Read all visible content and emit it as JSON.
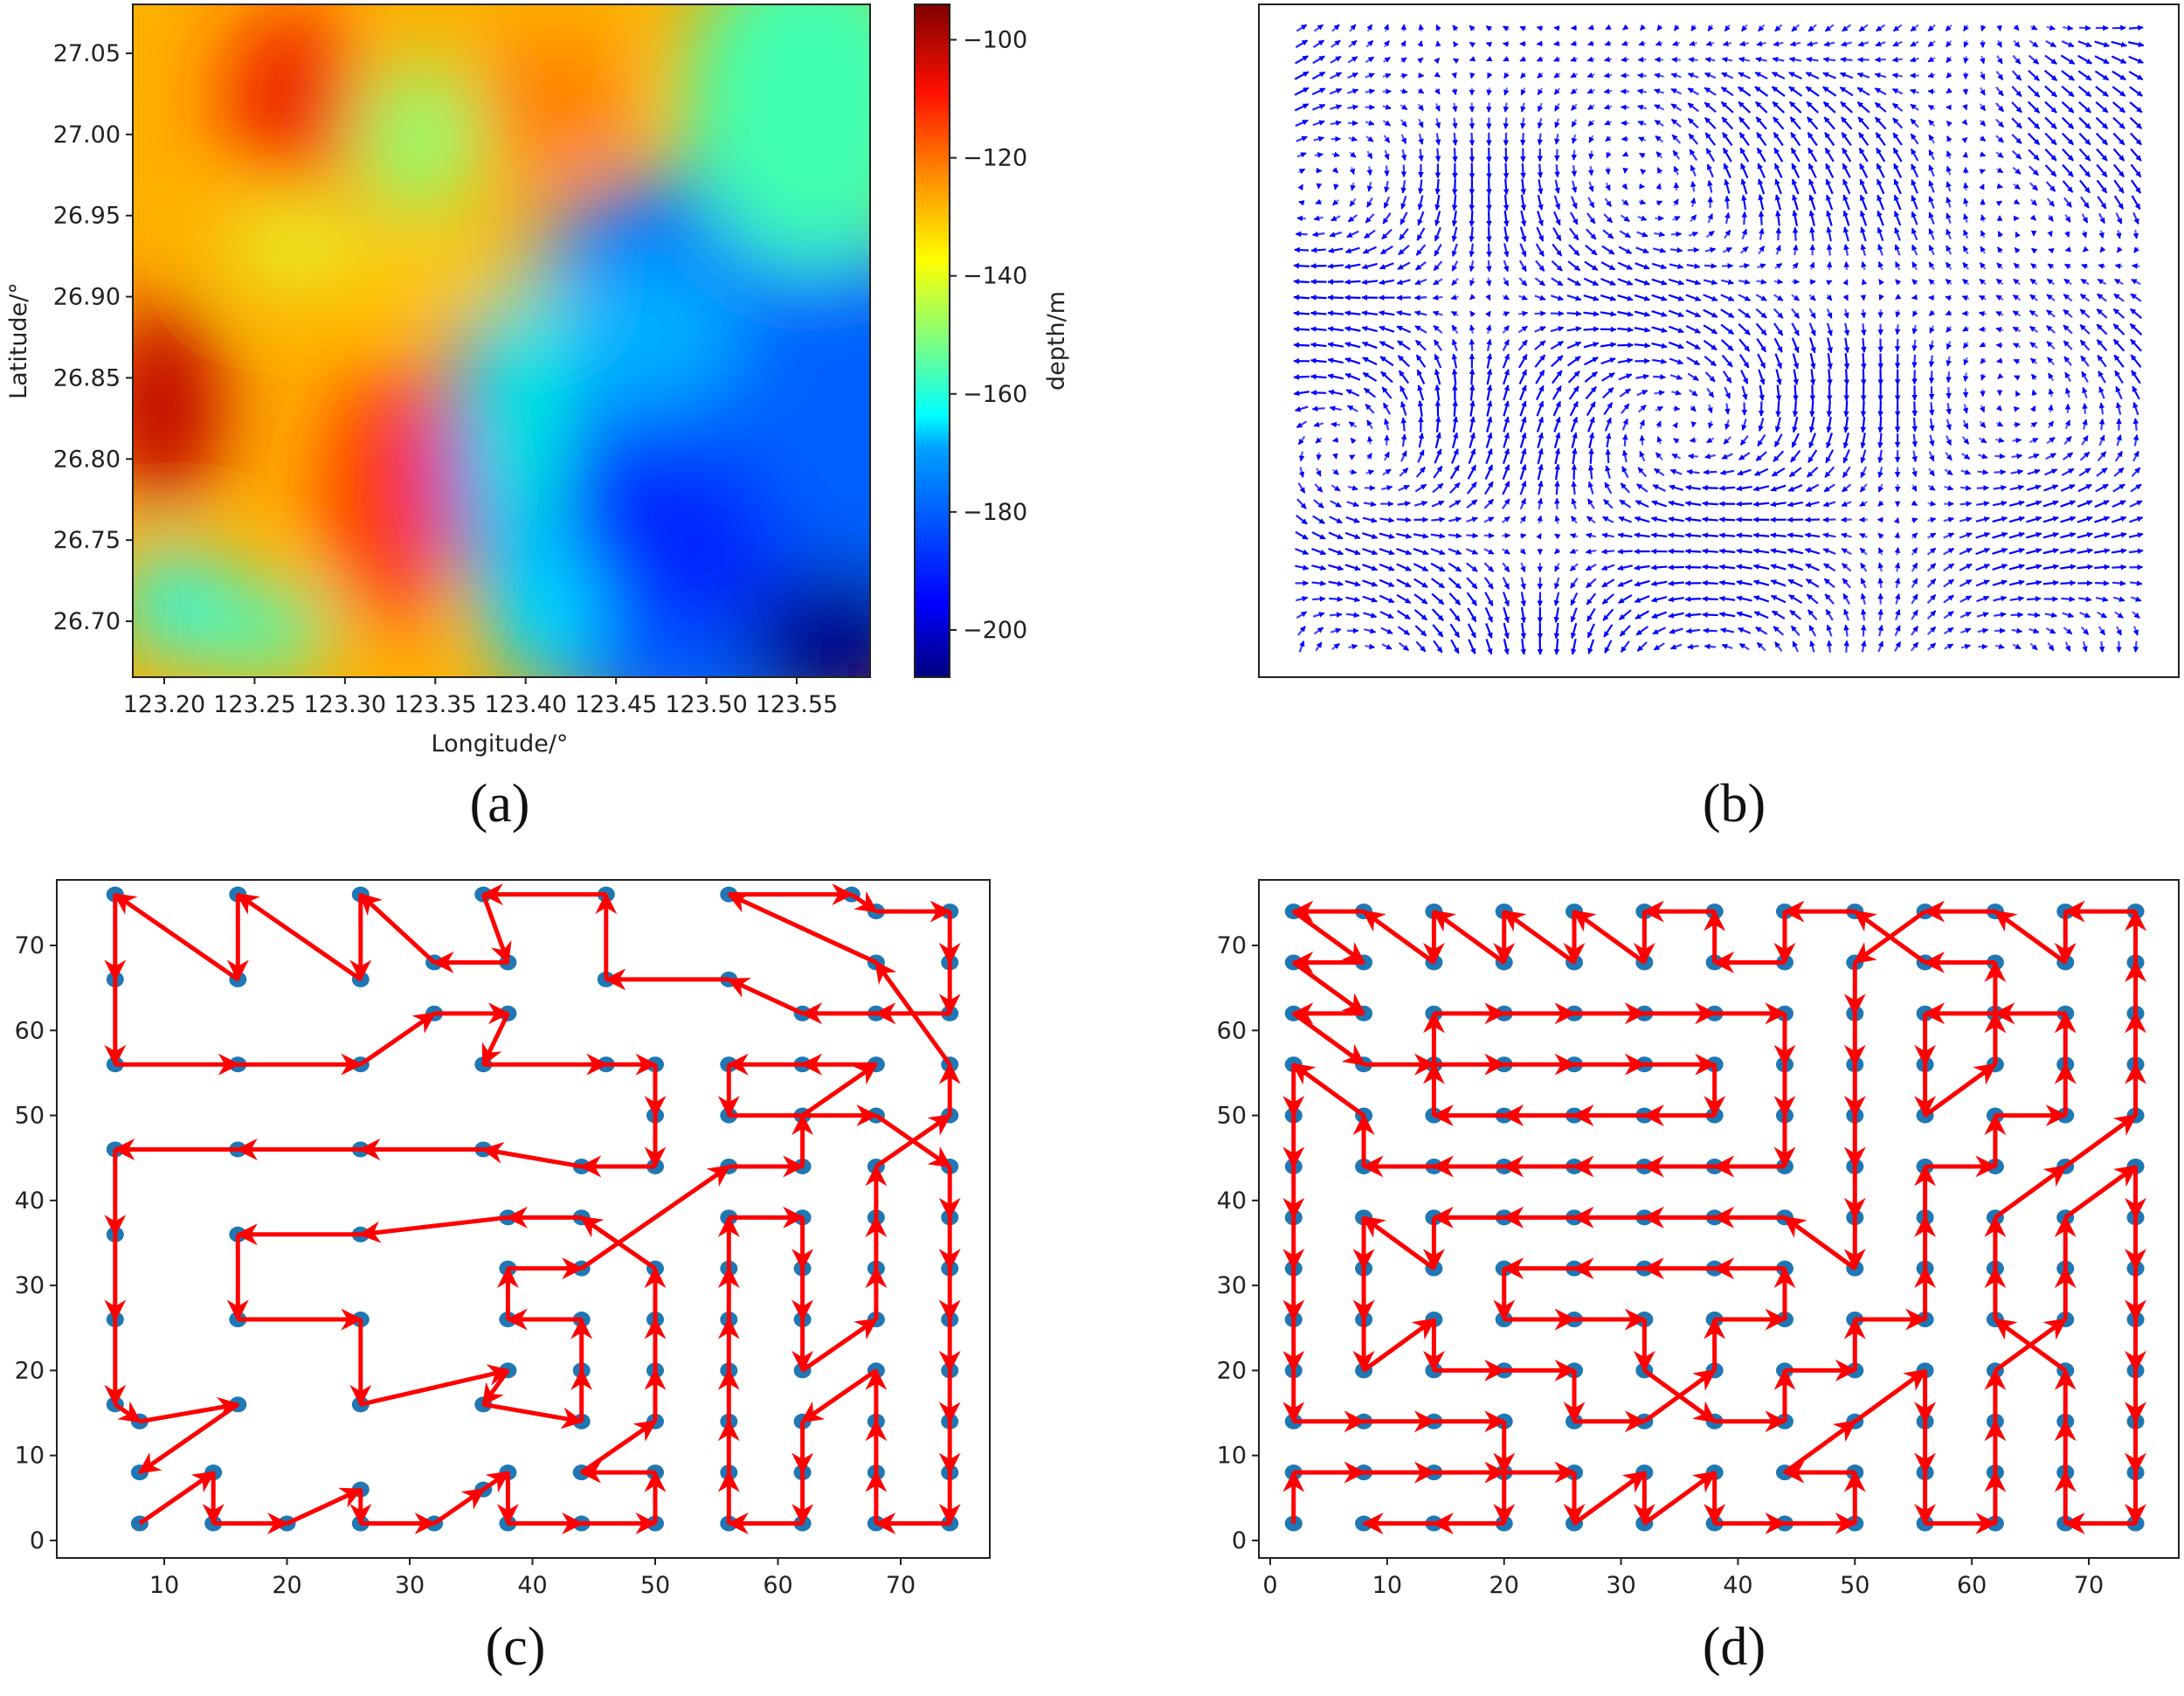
{
  "figure": {
    "panels": [
      {
        "id": "a",
        "caption": "(a)"
      },
      {
        "id": "b",
        "caption": "(b)"
      },
      {
        "id": "c",
        "caption": "(c)"
      },
      {
        "id": "d",
        "caption": "(d)"
      }
    ]
  },
  "chart_data": [
    {
      "panel": "(a)",
      "type": "heatmap",
      "title": "",
      "xlabel": "Longitude/°",
      "ylabel": "Latitude/°",
      "colorbar_label": "depth/m",
      "colormap": "jet",
      "xlim": [
        123.165,
        123.59
      ],
      "ylim": [
        26.665,
        27.08
      ],
      "x_ticks": [
        "123.20",
        "123.25",
        "123.30",
        "123.35",
        "123.40",
        "123.45",
        "123.50",
        "123.55"
      ],
      "y_ticks": [
        "26.70",
        "26.75",
        "26.80",
        "26.85",
        "26.90",
        "26.95",
        "27.00",
        "27.05"
      ],
      "colorbar_ticks": [
        "−100",
        "−120",
        "−140",
        "−160",
        "−180",
        "−200"
      ],
      "colorbar_range": [
        -208,
        -94
      ],
      "features": [
        {
          "desc": "shallow peak (dark red)",
          "lon": 123.26,
          "lat": 27.02,
          "depth": -98
        },
        {
          "desc": "shallow ridge (dark red)",
          "lon": 123.18,
          "lat": 26.82,
          "depth": -102
        },
        {
          "desc": "shallow ridge (red)",
          "lon": 123.31,
          "lat": 26.76,
          "depth": -110
        },
        {
          "desc": "light green pocket",
          "lon": 123.33,
          "lat": 27.0,
          "depth": -148
        },
        {
          "desc": "cyan pocket",
          "lon": 123.2,
          "lat": 26.71,
          "depth": -168
        },
        {
          "desc": "deep basin (blue)",
          "lon": 123.47,
          "lat": 26.74,
          "depth": -195
        },
        {
          "desc": "deepest (dark blue) corner",
          "lon": 123.57,
          "lat": 26.68,
          "depth": -207
        },
        {
          "desc": "green-cyan NE corner",
          "lon": 123.56,
          "lat": 27.05,
          "depth": -155
        }
      ]
    },
    {
      "panel": "(b)",
      "type": "quiver",
      "title": "",
      "xlabel": "",
      "ylabel": "",
      "arrow_color": "#0000ff",
      "grid": "approx 50 x 40 vectors",
      "description": "Current velocity field with eddies; no axis ticks shown"
    },
    {
      "panel": "(c)",
      "type": "scatter+path",
      "title": "",
      "xlabel": "",
      "ylabel": "",
      "xlim": [
        3,
        77
      ],
      "ylim": [
        -2,
        79
      ],
      "x_ticks": [
        10,
        20,
        30,
        40,
        50,
        60,
        70
      ],
      "y_ticks": [
        0,
        10,
        20,
        30,
        40,
        50,
        60,
        70
      ],
      "point_color": "#1f77b4",
      "path_color": "#ff0000",
      "path": [
        [
          8,
          2
        ],
        [
          14,
          8
        ],
        [
          14,
          2
        ],
        [
          20,
          2
        ],
        [
          26,
          6
        ],
        [
          26,
          2
        ],
        [
          32,
          2
        ],
        [
          36,
          6
        ],
        [
          38,
          8
        ],
        [
          38,
          2
        ],
        [
          44,
          2
        ],
        [
          50,
          2
        ],
        [
          50,
          8
        ],
        [
          44,
          8
        ],
        [
          50,
          14
        ],
        [
          50,
          20
        ],
        [
          50,
          26
        ],
        [
          50,
          32
        ],
        [
          44,
          38
        ],
        [
          38,
          38
        ],
        [
          26,
          36
        ],
        [
          16,
          36
        ],
        [
          16,
          26
        ],
        [
          26,
          26
        ],
        [
          26,
          16
        ],
        [
          38,
          20
        ],
        [
          36,
          16
        ],
        [
          44,
          14
        ],
        [
          44,
          20
        ],
        [
          44,
          26
        ],
        [
          38,
          26
        ],
        [
          38,
          32
        ],
        [
          44,
          32
        ],
        [
          56,
          44
        ],
        [
          62,
          44
        ],
        [
          62,
          50
        ],
        [
          68,
          56
        ],
        [
          62,
          56
        ],
        [
          56,
          56
        ],
        [
          56,
          50
        ],
        [
          68,
          50
        ],
        [
          74,
          44
        ],
        [
          74,
          38
        ],
        [
          74,
          32
        ],
        [
          74,
          26
        ],
        [
          74,
          20
        ],
        [
          74,
          14
        ],
        [
          74,
          8
        ],
        [
          74,
          2
        ],
        [
          68,
          2
        ],
        [
          68,
          8
        ],
        [
          68,
          14
        ],
        [
          68,
          20
        ],
        [
          62,
          14
        ],
        [
          62,
          8
        ],
        [
          62,
          2
        ],
        [
          56,
          2
        ],
        [
          56,
          8
        ],
        [
          56,
          14
        ],
        [
          56,
          20
        ],
        [
          56,
          26
        ],
        [
          56,
          32
        ],
        [
          56,
          38
        ],
        [
          62,
          38
        ],
        [
          62,
          32
        ],
        [
          62,
          26
        ],
        [
          62,
          20
        ],
        [
          68,
          26
        ],
        [
          68,
          32
        ],
        [
          68,
          38
        ],
        [
          68,
          44
        ],
        [
          74,
          50
        ],
        [
          74,
          56
        ],
        [
          68,
          68
        ],
        [
          56,
          76
        ],
        [
          66,
          76
        ],
        [
          68,
          74
        ],
        [
          74,
          74
        ],
        [
          74,
          68
        ],
        [
          74,
          62
        ],
        [
          68,
          62
        ],
        [
          62,
          62
        ],
        [
          56,
          66
        ],
        [
          46,
          66
        ],
        [
          46,
          76
        ],
        [
          36,
          76
        ],
        [
          38,
          68
        ],
        [
          32,
          68
        ],
        [
          26,
          76
        ],
        [
          26,
          66
        ],
        [
          16,
          76
        ],
        [
          16,
          66
        ],
        [
          6,
          76
        ],
        [
          6,
          66
        ],
        [
          6,
          56
        ],
        [
          16,
          56
        ],
        [
          26,
          56
        ],
        [
          32,
          62
        ],
        [
          38,
          62
        ],
        [
          36,
          56
        ],
        [
          46,
          56
        ],
        [
          50,
          56
        ],
        [
          50,
          50
        ],
        [
          50,
          44
        ],
        [
          44,
          44
        ],
        [
          36,
          46
        ],
        [
          26,
          46
        ],
        [
          16,
          46
        ],
        [
          6,
          46
        ],
        [
          6,
          36
        ],
        [
          6,
          26
        ],
        [
          6,
          16
        ],
        [
          8,
          14
        ],
        [
          16,
          16
        ],
        [
          8,
          8
        ]
      ]
    },
    {
      "panel": "(d)",
      "type": "scatter+path",
      "title": "",
      "xlabel": "",
      "ylabel": "",
      "xlim": [
        -2,
        77
      ],
      "ylim": [
        -2,
        77
      ],
      "x_ticks": [
        0,
        10,
        20,
        30,
        40,
        50,
        60,
        70
      ],
      "y_ticks": [
        0,
        10,
        20,
        30,
        40,
        50,
        60,
        70
      ],
      "point_color": "#1f77b4",
      "path_color": "#ff0000",
      "grid_x": [
        2,
        8,
        14,
        20,
        26,
        32,
        38,
        44,
        50,
        56,
        62,
        68,
        74
      ],
      "grid_y": [
        2,
        8,
        14,
        20,
        26,
        32,
        38,
        44,
        50,
        56,
        62,
        68,
        74
      ],
      "path": [
        [
          2,
          2
        ],
        [
          2,
          8
        ],
        [
          8,
          8
        ],
        [
          14,
          8
        ],
        [
          20,
          8
        ],
        [
          26,
          8
        ],
        [
          26,
          2
        ],
        [
          32,
          8
        ],
        [
          32,
          2
        ],
        [
          38,
          8
        ],
        [
          38,
          2
        ],
        [
          44,
          2
        ],
        [
          50,
          2
        ],
        [
          50,
          8
        ],
        [
          44,
          8
        ],
        [
          50,
          14
        ],
        [
          56,
          20
        ],
        [
          56,
          14
        ],
        [
          56,
          8
        ],
        [
          56,
          2
        ],
        [
          62,
          2
        ],
        [
          62,
          8
        ],
        [
          62,
          14
        ],
        [
          62,
          20
        ],
        [
          68,
          26
        ],
        [
          68,
          32
        ],
        [
          68,
          38
        ],
        [
          74,
          44
        ],
        [
          74,
          38
        ],
        [
          74,
          32
        ],
        [
          74,
          26
        ],
        [
          74,
          20
        ],
        [
          74,
          14
        ],
        [
          74,
          8
        ],
        [
          74,
          2
        ],
        [
          68,
          2
        ],
        [
          68,
          8
        ],
        [
          68,
          14
        ],
        [
          68,
          20
        ],
        [
          62,
          26
        ],
        [
          62,
          32
        ],
        [
          62,
          38
        ],
        [
          68,
          44
        ],
        [
          74,
          50
        ],
        [
          74,
          56
        ],
        [
          74,
          62
        ],
        [
          74,
          68
        ],
        [
          74,
          74
        ],
        [
          68,
          74
        ],
        [
          68,
          68
        ],
        [
          62,
          74
        ],
        [
          56,
          74
        ],
        [
          50,
          68
        ],
        [
          50,
          62
        ],
        [
          50,
          56
        ],
        [
          50,
          50
        ],
        [
          50,
          44
        ],
        [
          50,
          38
        ],
        [
          50,
          32
        ],
        [
          44,
          38
        ],
        [
          38,
          38
        ],
        [
          32,
          38
        ],
        [
          26,
          38
        ],
        [
          20,
          38
        ],
        [
          14,
          38
        ],
        [
          14,
          32
        ],
        [
          8,
          38
        ],
        [
          8,
          32
        ],
        [
          8,
          26
        ],
        [
          8,
          20
        ],
        [
          14,
          26
        ],
        [
          14,
          20
        ],
        [
          20,
          20
        ],
        [
          26,
          20
        ],
        [
          26,
          14
        ],
        [
          32,
          14
        ],
        [
          38,
          20
        ],
        [
          38,
          26
        ],
        [
          44,
          26
        ],
        [
          44,
          32
        ],
        [
          38,
          32
        ],
        [
          32,
          32
        ],
        [
          26,
          32
        ],
        [
          20,
          32
        ],
        [
          20,
          26
        ],
        [
          26,
          26
        ],
        [
          32,
          26
        ],
        [
          32,
          20
        ],
        [
          38,
          14
        ],
        [
          44,
          14
        ],
        [
          44,
          20
        ],
        [
          50,
          20
        ],
        [
          50,
          26
        ],
        [
          56,
          26
        ],
        [
          56,
          32
        ],
        [
          56,
          38
        ],
        [
          56,
          44
        ],
        [
          62,
          44
        ],
        [
          62,
          50
        ],
        [
          68,
          50
        ],
        [
          68,
          56
        ],
        [
          68,
          62
        ],
        [
          62,
          62
        ],
        [
          56,
          62
        ],
        [
          56,
          56
        ],
        [
          56,
          50
        ],
        [
          62,
          56
        ],
        [
          62,
          62
        ],
        [
          62,
          68
        ],
        [
          56,
          68
        ],
        [
          50,
          74
        ],
        [
          44,
          74
        ],
        [
          44,
          68
        ],
        [
          38,
          68
        ],
        [
          38,
          74
        ],
        [
          32,
          74
        ],
        [
          32,
          68
        ],
        [
          26,
          74
        ],
        [
          26,
          68
        ],
        [
          20,
          74
        ],
        [
          20,
          68
        ],
        [
          14,
          74
        ],
        [
          14,
          68
        ],
        [
          8,
          74
        ],
        [
          2,
          74
        ],
        [
          8,
          68
        ],
        [
          2,
          68
        ],
        [
          8,
          62
        ],
        [
          2,
          62
        ],
        [
          8,
          56
        ],
        [
          14,
          56
        ],
        [
          20,
          56
        ],
        [
          26,
          56
        ],
        [
          32,
          56
        ],
        [
          38,
          56
        ],
        [
          38,
          50
        ],
        [
          32,
          50
        ],
        [
          26,
          50
        ],
        [
          20,
          50
        ],
        [
          14,
          50
        ],
        [
          14,
          56
        ],
        [
          14,
          62
        ],
        [
          20,
          62
        ],
        [
          26,
          62
        ],
        [
          32,
          62
        ],
        [
          38,
          62
        ],
        [
          44,
          62
        ],
        [
          44,
          56
        ],
        [
          44,
          50
        ],
        [
          44,
          44
        ],
        [
          38,
          44
        ],
        [
          32,
          44
        ],
        [
          26,
          44
        ],
        [
          20,
          44
        ],
        [
          14,
          44
        ],
        [
          8,
          44
        ],
        [
          8,
          50
        ],
        [
          2,
          56
        ],
        [
          2,
          50
        ],
        [
          2,
          44
        ],
        [
          2,
          38
        ],
        [
          2,
          32
        ],
        [
          2,
          26
        ],
        [
          2,
          20
        ],
        [
          2,
          14
        ],
        [
          8,
          14
        ],
        [
          14,
          14
        ],
        [
          20,
          14
        ],
        [
          20,
          8
        ],
        [
          20,
          2
        ],
        [
          14,
          2
        ],
        [
          8,
          2
        ]
      ]
    }
  ]
}
